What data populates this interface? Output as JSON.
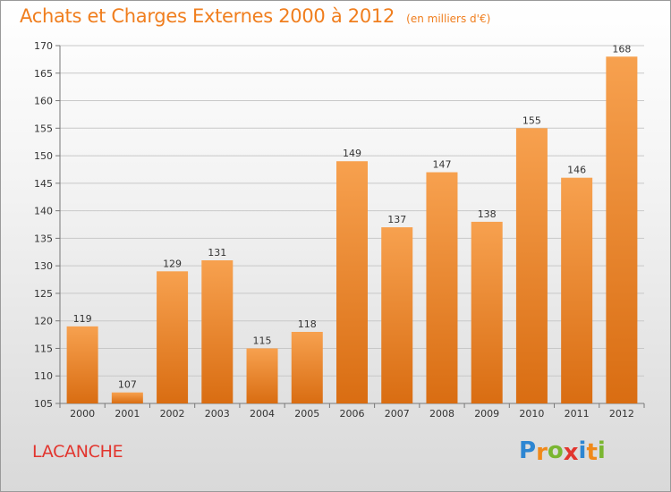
{
  "header": {
    "title": "Achats et Charges Externes 2000 à 2012",
    "subtitle": "(en milliers d'€)"
  },
  "footer": {
    "commune": "LACANCHE",
    "logo_letters": [
      "P",
      "r",
      "o",
      "x",
      "i",
      "t",
      "i"
    ],
    "logo_colors": [
      "#2d86d2",
      "#f0891a",
      "#7ab631",
      "#e2352e",
      "#2d86d2",
      "#f0891a",
      "#7ab631"
    ]
  },
  "chart_data": {
    "type": "bar",
    "categories": [
      "2000",
      "2001",
      "2002",
      "2003",
      "2004",
      "2005",
      "2006",
      "2007",
      "2008",
      "2009",
      "2010",
      "2011",
      "2012"
    ],
    "values": [
      119,
      107,
      129,
      131,
      115,
      118,
      149,
      137,
      147,
      138,
      155,
      146,
      168
    ],
    "ylim": [
      105,
      170
    ],
    "yticks": [
      105,
      110,
      115,
      120,
      125,
      130,
      135,
      140,
      145,
      150,
      155,
      160,
      165,
      170
    ],
    "grid": true,
    "bar_color": "#f0891a"
  }
}
